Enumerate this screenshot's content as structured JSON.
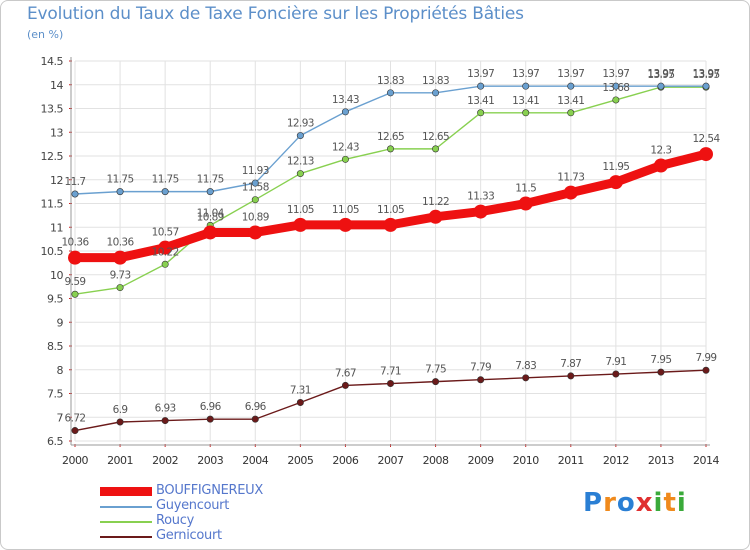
{
  "title": "Evolution du Taux de Taxe Foncière sur les Propriétés Bâties",
  "unit_label": "(en %)",
  "logo": {
    "text": "Proxiti",
    "letters": [
      "P",
      "r",
      "o",
      "x",
      "i",
      "t",
      "i"
    ]
  },
  "chart_data": {
    "type": "line",
    "x": [
      "2000",
      "2001",
      "2002",
      "2003",
      "2004",
      "2005",
      "2006",
      "2007",
      "2008",
      "2009",
      "2010",
      "2011",
      "2012",
      "2013",
      "2014"
    ],
    "ylim": [
      6.5,
      14.5
    ],
    "yticks": [
      "6.5",
      "7",
      "7.5",
      "8",
      "8.5",
      "9",
      "9.5",
      "10",
      "10.5",
      "11",
      "11.5",
      "12",
      "12.5",
      "13",
      "13.5",
      "14",
      "14.5"
    ],
    "grid": true,
    "legend": "bottom-left",
    "series": [
      {
        "name": "Gernicourt",
        "color": "#6b1a1a",
        "values": [
          6.72,
          6.9,
          6.93,
          6.96,
          6.96,
          7.31,
          7.67,
          7.71,
          7.75,
          7.79,
          7.83,
          7.87,
          7.91,
          7.95,
          7.99
        ],
        "labels": [
          "6.72",
          "6.9",
          "6.93",
          "6.96",
          "6.96",
          "7.31",
          "7.67",
          "7.71",
          "7.75",
          "7.79",
          "7.83",
          "7.87",
          "7.91",
          "7.95",
          "7.99"
        ]
      },
      {
        "name": "Roucy",
        "color": "#88d050",
        "values": [
          9.59,
          9.73,
          10.22,
          11.04,
          11.58,
          12.13,
          12.43,
          12.65,
          12.65,
          13.41,
          13.41,
          13.41,
          13.68,
          13.95,
          13.95
        ],
        "labels": [
          "9.59",
          "9.73",
          "10.22",
          "11.04",
          "11.58",
          "12.13",
          "12.43",
          "12.65",
          "12.65",
          "13.41",
          "13.41",
          "13.41",
          "13.68",
          "13.95",
          "13.95"
        ]
      },
      {
        "name": "Guyencourt",
        "color": "#6aa0d0",
        "values": [
          11.7,
          11.75,
          11.75,
          11.75,
          11.93,
          12.93,
          13.43,
          13.83,
          13.83,
          13.97,
          13.97,
          13.97,
          13.97,
          13.97,
          13.97
        ],
        "labels": [
          "11.7",
          "11.75",
          "11.75",
          "11.75",
          "11.93",
          "12.93",
          "13.43",
          "13.83",
          "13.83",
          "13.97",
          "13.97",
          "13.97",
          "13.97",
          "13.97",
          "13.97"
        ]
      },
      {
        "name": "BOUFFIGNEREUX",
        "color": "#ee1111",
        "values": [
          10.36,
          10.36,
          10.57,
          10.89,
          10.89,
          11.05,
          11.05,
          11.05,
          11.22,
          11.33,
          11.5,
          11.73,
          11.95,
          12.3,
          12.54
        ],
        "labels": [
          "10.36",
          "10.36",
          "10.57",
          "10.89",
          "10.89",
          "11.05",
          "11.05",
          "11.05",
          "11.22",
          "11.33",
          "11.5",
          "11.73",
          "11.95",
          "12.3",
          "12.54"
        ]
      }
    ],
    "legend_order": [
      "BOUFFIGNEREUX",
      "Guyencourt",
      "Roucy",
      "Gernicourt"
    ]
  }
}
